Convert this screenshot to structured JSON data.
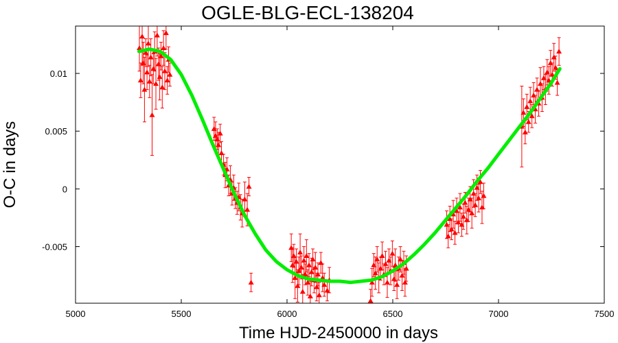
{
  "chart_data": {
    "type": "scatter",
    "title": "OGLE-BLG-ECL-138204",
    "xlabel": "Time HJD-2450000 in days",
    "ylabel": "O-C in days",
    "xlim": [
      5000,
      7500
    ],
    "ylim": [
      -0.0099,
      0.0141
    ],
    "grid": false,
    "legend": "none",
    "xticks": [
      5000,
      5500,
      6000,
      6500,
      7000,
      7500
    ],
    "yticks": [
      -0.005,
      0,
      0.005,
      0.01
    ],
    "xtick_labels": [
      "5000",
      "5500",
      "6000",
      "6500",
      "7000",
      "7500"
    ],
    "ytick_labels": [
      "-0.005",
      "0",
      "0.005",
      "0.01"
    ],
    "colors": {
      "points": "#ff0000",
      "fit": "#00ee00",
      "axes": "#000000"
    },
    "series": [
      {
        "kind": "points-with-errorbars",
        "points": [
          {
            "x": 5302,
            "y": 0.0122,
            "err": 0.002
          },
          {
            "x": 5308,
            "y": 0.0094,
            "err": 0.0015
          },
          {
            "x": 5315,
            "y": 0.0132,
            "err": 0.0025
          },
          {
            "x": 5320,
            "y": 0.0109,
            "err": 0.0018
          },
          {
            "x": 5326,
            "y": 0.0086,
            "err": 0.0028
          },
          {
            "x": 5332,
            "y": 0.0118,
            "err": 0.0012
          },
          {
            "x": 5338,
            "y": 0.0101,
            "err": 0.0015
          },
          {
            "x": 5344,
            "y": 0.0126,
            "err": 0.002
          },
          {
            "x": 5350,
            "y": 0.0093,
            "err": 0.0014
          },
          {
            "x": 5356,
            "y": 0.0114,
            "err": 0.0016
          },
          {
            "x": 5362,
            "y": 0.0064,
            "err": 0.0035
          },
          {
            "x": 5368,
            "y": 0.0104,
            "err": 0.0013
          },
          {
            "x": 5374,
            "y": 0.0119,
            "err": 0.0017
          },
          {
            "x": 5380,
            "y": 0.0091,
            "err": 0.0022
          },
          {
            "x": 5386,
            "y": 0.0133,
            "err": 0.0018
          },
          {
            "x": 5392,
            "y": 0.0108,
            "err": 0.0014
          },
          {
            "x": 5398,
            "y": 0.0097,
            "err": 0.002
          },
          {
            "x": 5404,
            "y": 0.0115,
            "err": 0.0012
          },
          {
            "x": 5410,
            "y": 0.0088,
            "err": 0.0018
          },
          {
            "x": 5416,
            "y": 0.0122,
            "err": 0.0015
          },
          {
            "x": 5422,
            "y": 0.0102,
            "err": 0.0016
          },
          {
            "x": 5428,
            "y": 0.0135,
            "err": 0.0014
          },
          {
            "x": 5434,
            "y": 0.0094,
            "err": 0.0012
          },
          {
            "x": 5440,
            "y": 0.0112,
            "err": 0.0011
          },
          {
            "x": 5446,
            "y": 0.0099,
            "err": 0.001
          },
          {
            "x": 5655,
            "y": 0.0052,
            "err": 0.001
          },
          {
            "x": 5662,
            "y": 0.0046,
            "err": 0.0012
          },
          {
            "x": 5670,
            "y": 0.0043,
            "err": 0.0009
          },
          {
            "x": 5676,
            "y": 0.0038,
            "err": 0.0011
          },
          {
            "x": 5684,
            "y": 0.0048,
            "err": 0.0008
          },
          {
            "x": 5690,
            "y": 0.0031,
            "err": 0.001
          },
          {
            "x": 5700,
            "y": 0.0021,
            "err": 0.0009
          },
          {
            "x": 5708,
            "y": 0.0012,
            "err": 0.0011
          },
          {
            "x": 5716,
            "y": 0.0017,
            "err": 0.001
          },
          {
            "x": 5724,
            "y": 0.0003,
            "err": 0.0009
          },
          {
            "x": 5732,
            "y": 0.0008,
            "err": 0.0012
          },
          {
            "x": 5740,
            "y": -0.0004,
            "err": 0.001
          },
          {
            "x": 5748,
            "y": 0.0001,
            "err": 0.0011
          },
          {
            "x": 5756,
            "y": -0.0008,
            "err": 0.0009
          },
          {
            "x": 5764,
            "y": -0.0012,
            "err": 0.001
          },
          {
            "x": 5772,
            "y": -0.0007,
            "err": 0.0012
          },
          {
            "x": 5780,
            "y": -0.0016,
            "err": 0.0011
          },
          {
            "x": 5788,
            "y": -0.0021,
            "err": 0.0012
          },
          {
            "x": 5800,
            "y": -0.0009,
            "err": 0.0015
          },
          {
            "x": 5812,
            "y": -0.0018,
            "err": 0.0014
          },
          {
            "x": 5820,
            "y": 0.0002,
            "err": 0.0008
          },
          {
            "x": 5830,
            "y": -0.0081,
            "err": 0.0008
          },
          {
            "x": 6020,
            "y": -0.0051,
            "err": 0.0012
          },
          {
            "x": 6026,
            "y": -0.0066,
            "err": 0.0015
          },
          {
            "x": 6032,
            "y": -0.0058,
            "err": 0.001
          },
          {
            "x": 6038,
            "y": -0.0077,
            "err": 0.0018
          },
          {
            "x": 6044,
            "y": -0.0063,
            "err": 0.0011
          },
          {
            "x": 6050,
            "y": -0.0084,
            "err": 0.0014
          },
          {
            "x": 6056,
            "y": -0.0071,
            "err": 0.0012
          },
          {
            "x": 6062,
            "y": -0.0055,
            "err": 0.0016
          },
          {
            "x": 6068,
            "y": -0.0068,
            "err": 0.001
          },
          {
            "x": 6074,
            "y": -0.0089,
            "err": 0.0015
          },
          {
            "x": 6080,
            "y": -0.0062,
            "err": 0.0012
          },
          {
            "x": 6086,
            "y": -0.0074,
            "err": 0.0009
          },
          {
            "x": 6092,
            "y": -0.0058,
            "err": 0.0014
          },
          {
            "x": 6098,
            "y": -0.0081,
            "err": 0.0011
          },
          {
            "x": 6104,
            "y": -0.0066,
            "err": 0.001
          },
          {
            "x": 6110,
            "y": -0.0093,
            "err": 0.0013
          },
          {
            "x": 6116,
            "y": -0.0072,
            "err": 0.0012
          },
          {
            "x": 6122,
            "y": -0.0061,
            "err": 0.0009
          },
          {
            "x": 6128,
            "y": -0.0079,
            "err": 0.0011
          },
          {
            "x": 6134,
            "y": -0.0068,
            "err": 0.0013
          },
          {
            "x": 6140,
            "y": -0.0085,
            "err": 0.0012
          },
          {
            "x": 6146,
            "y": -0.0074,
            "err": 0.001
          },
          {
            "x": 6152,
            "y": -0.0092,
            "err": 0.0011
          },
          {
            "x": 6160,
            "y": -0.0064,
            "err": 0.0009
          },
          {
            "x": 6168,
            "y": -0.0077,
            "err": 0.0012
          },
          {
            "x": 6176,
            "y": -0.0083,
            "err": 0.001
          },
          {
            "x": 6190,
            "y": -0.0088,
            "err": 0.0009
          },
          {
            "x": 6200,
            "y": -0.0079,
            "err": 0.0011
          },
          {
            "x": 6395,
            "y": -0.0097,
            "err": 0.001
          },
          {
            "x": 6402,
            "y": -0.0081,
            "err": 0.0012
          },
          {
            "x": 6410,
            "y": -0.0066,
            "err": 0.001
          },
          {
            "x": 6418,
            "y": -0.0073,
            "err": 0.0014
          },
          {
            "x": 6426,
            "y": -0.0061,
            "err": 0.0011
          },
          {
            "x": 6434,
            "y": -0.0077,
            "err": 0.0013
          },
          {
            "x": 6442,
            "y": -0.0069,
            "err": 0.001
          },
          {
            "x": 6450,
            "y": -0.0058,
            "err": 0.0012
          },
          {
            "x": 6458,
            "y": -0.0074,
            "err": 0.0009
          },
          {
            "x": 6466,
            "y": -0.0065,
            "err": 0.0011
          },
          {
            "x": 6474,
            "y": -0.0081,
            "err": 0.0013
          },
          {
            "x": 6482,
            "y": -0.0062,
            "err": 0.001
          },
          {
            "x": 6490,
            "y": -0.0071,
            "err": 0.0012
          },
          {
            "x": 6498,
            "y": -0.0056,
            "err": 0.0011
          },
          {
            "x": 6506,
            "y": -0.0078,
            "err": 0.001
          },
          {
            "x": 6512,
            "y": -0.0066,
            "err": 0.0014
          },
          {
            "x": 6520,
            "y": -0.0083,
            "err": 0.0012
          },
          {
            "x": 6528,
            "y": -0.0069,
            "err": 0.001
          },
          {
            "x": 6536,
            "y": -0.0061,
            "err": 0.0011
          },
          {
            "x": 6544,
            "y": -0.0075,
            "err": 0.0013
          },
          {
            "x": 6552,
            "y": -0.0064,
            "err": 0.001
          },
          {
            "x": 6558,
            "y": -0.0081,
            "err": 0.0012
          },
          {
            "x": 6564,
            "y": -0.0069,
            "err": 0.0011
          },
          {
            "x": 6755,
            "y": -0.0031,
            "err": 0.0012
          },
          {
            "x": 6762,
            "y": -0.0041,
            "err": 0.001
          },
          {
            "x": 6770,
            "y": -0.0026,
            "err": 0.0011
          },
          {
            "x": 6778,
            "y": -0.0035,
            "err": 0.0009
          },
          {
            "x": 6786,
            "y": -0.0022,
            "err": 0.0012
          },
          {
            "x": 6794,
            "y": -0.0038,
            "err": 0.001
          },
          {
            "x": 6802,
            "y": -0.0019,
            "err": 0.0011
          },
          {
            "x": 6810,
            "y": -0.0029,
            "err": 0.0009
          },
          {
            "x": 6818,
            "y": -0.0016,
            "err": 0.0012
          },
          {
            "x": 6826,
            "y": -0.0031,
            "err": 0.001
          },
          {
            "x": 6834,
            "y": -0.0024,
            "err": 0.0011
          },
          {
            "x": 6842,
            "y": -0.0012,
            "err": 0.0009
          },
          {
            "x": 6850,
            "y": -0.0027,
            "err": 0.0012
          },
          {
            "x": 6858,
            "y": -0.0018,
            "err": 0.001
          },
          {
            "x": 6866,
            "y": -0.0009,
            "err": 0.0011
          },
          {
            "x": 6874,
            "y": -0.0021,
            "err": 0.0013
          },
          {
            "x": 6882,
            "y": -0.0004,
            "err": 0.0012
          },
          {
            "x": 6890,
            "y": -0.0014,
            "err": 0.001
          },
          {
            "x": 6898,
            "y": 0.0001,
            "err": 0.0011
          },
          {
            "x": 6906,
            "y": -0.0008,
            "err": 0.0012
          },
          {
            "x": 6914,
            "y": 0.0006,
            "err": 0.001
          },
          {
            "x": 6922,
            "y": -0.0016,
            "err": 0.0014
          },
          {
            "x": 6930,
            "y": -0.0006,
            "err": 0.0011
          },
          {
            "x": 7110,
            "y": 0.0054,
            "err": 0.0035
          },
          {
            "x": 7118,
            "y": 0.0066,
            "err": 0.0012
          },
          {
            "x": 7126,
            "y": 0.0049,
            "err": 0.001
          },
          {
            "x": 7134,
            "y": 0.0071,
            "err": 0.0011
          },
          {
            "x": 7142,
            "y": 0.0058,
            "err": 0.0009
          },
          {
            "x": 7150,
            "y": 0.0076,
            "err": 0.0012
          },
          {
            "x": 7158,
            "y": 0.0063,
            "err": 0.001
          },
          {
            "x": 7166,
            "y": 0.0081,
            "err": 0.0011
          },
          {
            "x": 7174,
            "y": 0.0069,
            "err": 0.0012
          },
          {
            "x": 7182,
            "y": 0.0086,
            "err": 0.001
          },
          {
            "x": 7190,
            "y": 0.0074,
            "err": 0.0011
          },
          {
            "x": 7198,
            "y": 0.0091,
            "err": 0.0014
          },
          {
            "x": 7206,
            "y": 0.0079,
            "err": 0.0012
          },
          {
            "x": 7214,
            "y": 0.0096,
            "err": 0.001
          },
          {
            "x": 7222,
            "y": 0.0086,
            "err": 0.0013
          },
          {
            "x": 7230,
            "y": 0.0101,
            "err": 0.0011
          },
          {
            "x": 7238,
            "y": 0.0094,
            "err": 0.0012
          },
          {
            "x": 7246,
            "y": 0.0109,
            "err": 0.0011
          },
          {
            "x": 7254,
            "y": 0.0099,
            "err": 0.001
          },
          {
            "x": 7262,
            "y": 0.0114,
            "err": 0.0012
          },
          {
            "x": 7270,
            "y": 0.0105,
            "err": 0.001
          },
          {
            "x": 7278,
            "y": 0.0092,
            "err": 0.0011
          },
          {
            "x": 7286,
            "y": 0.0119,
            "err": 0.0012
          }
        ]
      },
      {
        "kind": "fit-curve",
        "x": [
          5300,
          5350,
          5400,
          5450,
          5500,
          5550,
          5600,
          5650,
          5700,
          5750,
          5800,
          5850,
          5900,
          5950,
          6000,
          6050,
          6100,
          6150,
          6200,
          6250,
          6300,
          6350,
          6400,
          6450,
          6500,
          6550,
          6600,
          6650,
          6700,
          6750,
          6800,
          6850,
          6900,
          6950,
          7000,
          7050,
          7100,
          7150,
          7200,
          7250,
          7290
        ],
        "y": [
          0.0119,
          0.0121,
          0.0119,
          0.0112,
          0.0099,
          0.0081,
          0.006,
          0.0038,
          0.0017,
          -0.0004,
          -0.0023,
          -0.0039,
          -0.0053,
          -0.0063,
          -0.007,
          -0.0075,
          -0.0078,
          -0.0079,
          -0.008,
          -0.008,
          -0.0081,
          -0.008,
          -0.0079,
          -0.0076,
          -0.0071,
          -0.0065,
          -0.0057,
          -0.0048,
          -0.0038,
          -0.0027,
          -0.0016,
          -0.0005,
          0.0007,
          0.0018,
          0.003,
          0.0042,
          0.0054,
          0.0066,
          0.0079,
          0.0092,
          0.0104
        ]
      }
    ]
  }
}
